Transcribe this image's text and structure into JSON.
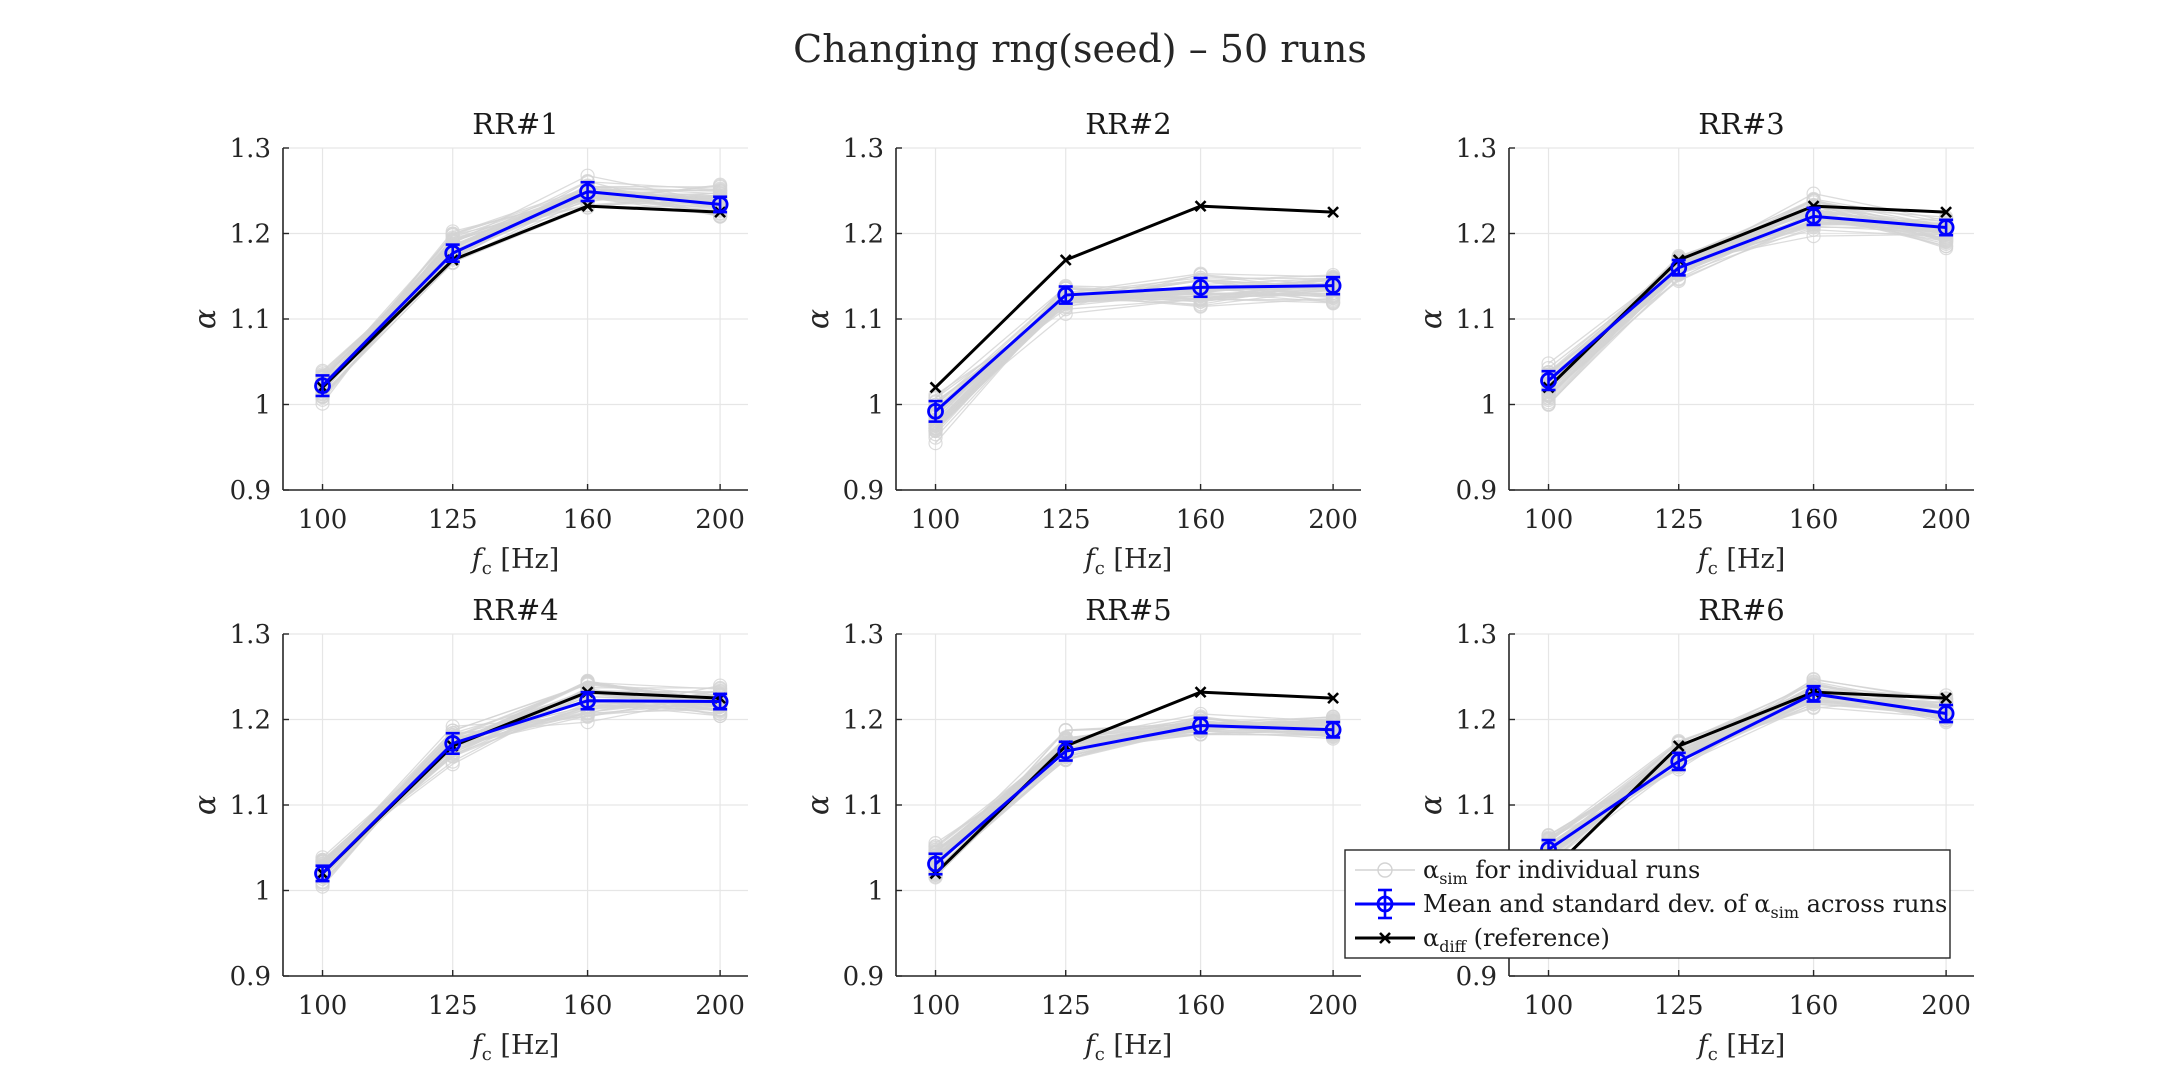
{
  "figure": {
    "title": "Changing rng(seed) – 50 runs"
  },
  "legend": {
    "items": [
      {
        "key": "individual",
        "label_main": "α",
        "label_sub": "sim",
        "label_rest": " for individual runs",
        "color": "#d3d3d3"
      },
      {
        "key": "mean",
        "label_main": "Mean and standard dev. of α",
        "label_sub": "sim",
        "label_rest": " across runs",
        "color": "#0000ff"
      },
      {
        "key": "reference",
        "label_main": "α",
        "label_sub": "diff",
        "label_rest": " (reference)",
        "color": "#000000"
      }
    ],
    "placement": "bottom-right (overlapping RR#6)"
  },
  "colors": {
    "individual": "#d3d3d3",
    "mean": "#0000ff",
    "reference": "#000000",
    "grid": "#e6e6e6",
    "axis": "#262626"
  },
  "chart_data": [
    {
      "type": "line",
      "title": "RR#1",
      "xlabel_main": "f",
      "xlabel_sub": "c",
      "xlabel_rest": " [Hz]",
      "ylabel": "α",
      "categories": [
        "100",
        "125",
        "160",
        "200"
      ],
      "ylim": [
        0.9,
        1.3
      ],
      "yticks": [
        "0.9",
        "1",
        "1.1",
        "1.2",
        "1.3"
      ],
      "grid": true,
      "individual_range": {
        "min": [
          0.99,
          1.155,
          1.225,
          1.212
        ],
        "max": [
          1.052,
          1.21,
          1.27,
          1.262
        ]
      },
      "series": [
        {
          "name": "Mean and standard dev. of α sim across runs",
          "values": [
            1.022,
            1.177,
            1.249,
            1.234
          ],
          "std": [
            0.012,
            0.01,
            0.011,
            0.009
          ]
        },
        {
          "name": "α diff (reference)",
          "values": [
            1.02,
            1.169,
            1.232,
            1.225
          ]
        }
      ]
    },
    {
      "type": "line",
      "title": "RR#2",
      "xlabel_main": "f",
      "xlabel_sub": "c",
      "xlabel_rest": " [Hz]",
      "ylabel": "α",
      "categories": [
        "100",
        "125",
        "160",
        "200"
      ],
      "ylim": [
        0.9,
        1.3
      ],
      "yticks": [
        "0.9",
        "1",
        "1.1",
        "1.2",
        "1.3"
      ],
      "grid": true,
      "individual_range": {
        "min": [
          0.946,
          1.105,
          1.103,
          1.115
        ],
        "max": [
          1.02,
          1.145,
          1.16,
          1.163
        ]
      },
      "series": [
        {
          "name": "Mean and standard dev. of α sim across runs",
          "values": [
            0.992,
            1.128,
            1.137,
            1.139
          ],
          "std": [
            0.012,
            0.01,
            0.011,
            0.01
          ]
        },
        {
          "name": "α diff (reference)",
          "values": [
            1.02,
            1.169,
            1.232,
            1.225
          ]
        }
      ]
    },
    {
      "type": "line",
      "title": "RR#3",
      "xlabel_main": "f",
      "xlabel_sub": "c",
      "xlabel_rest": " [Hz]",
      "ylabel": "α",
      "categories": [
        "100",
        "125",
        "160",
        "200"
      ],
      "ylim": [
        0.9,
        1.3
      ],
      "yticks": [
        "0.9",
        "1",
        "1.1",
        "1.2",
        "1.3"
      ],
      "grid": true,
      "individual_range": {
        "min": [
          0.99,
          1.135,
          1.193,
          1.178
        ],
        "max": [
          1.055,
          1.185,
          1.252,
          1.228
        ]
      },
      "series": [
        {
          "name": "Mean and standard dev. of α sim across runs",
          "values": [
            1.028,
            1.16,
            1.22,
            1.207
          ],
          "std": [
            0.011,
            0.009,
            0.01,
            0.009
          ]
        },
        {
          "name": "α diff (reference)",
          "values": [
            1.02,
            1.169,
            1.232,
            1.225
          ]
        }
      ]
    },
    {
      "type": "line",
      "title": "RR#4",
      "xlabel_main": "f",
      "xlabel_sub": "c",
      "xlabel_rest": " [Hz]",
      "ylabel": "α",
      "categories": [
        "100",
        "125",
        "160",
        "200"
      ],
      "ylim": [
        0.9,
        1.3
      ],
      "yticks": [
        "0.9",
        "1",
        "1.1",
        "1.2",
        "1.3"
      ],
      "grid": true,
      "individual_range": {
        "min": [
          1.0,
          1.143,
          1.19,
          1.195
        ],
        "max": [
          1.048,
          1.2,
          1.26,
          1.243
        ]
      },
      "series": [
        {
          "name": "Mean and standard dev. of α sim across runs",
          "values": [
            1.02,
            1.172,
            1.222,
            1.221
          ],
          "std": [
            0.009,
            0.012,
            0.01,
            0.009
          ]
        },
        {
          "name": "α diff (reference)",
          "values": [
            1.02,
            1.169,
            1.232,
            1.225
          ]
        }
      ]
    },
    {
      "type": "line",
      "title": "RR#5",
      "xlabel_main": "f",
      "xlabel_sub": "c",
      "xlabel_rest": " [Hz]",
      "ylabel": "α",
      "categories": [
        "100",
        "125",
        "160",
        "200"
      ],
      "ylim": [
        0.9,
        1.3
      ],
      "yticks": [
        "0.9",
        "1",
        "1.1",
        "1.2",
        "1.3"
      ],
      "grid": true,
      "individual_range": {
        "min": [
          1.003,
          1.14,
          1.172,
          1.17
        ],
        "max": [
          1.06,
          1.195,
          1.213,
          1.208
        ]
      },
      "series": [
        {
          "name": "Mean and standard dev. of α sim across runs",
          "values": [
            1.031,
            1.163,
            1.193,
            1.188
          ],
          "std": [
            0.012,
            0.011,
            0.009,
            0.009
          ]
        },
        {
          "name": "α diff (reference)",
          "values": [
            1.02,
            1.169,
            1.232,
            1.225
          ]
        }
      ]
    },
    {
      "type": "line",
      "title": "RR#6",
      "xlabel_main": "f",
      "xlabel_sub": "c",
      "xlabel_rest": " [Hz]",
      "ylabel": "α",
      "categories": [
        "100",
        "125",
        "160",
        "200"
      ],
      "ylim": [
        0.9,
        1.3
      ],
      "yticks": [
        "0.9",
        "1",
        "1.1",
        "1.2",
        "1.3"
      ],
      "grid": true,
      "individual_range": {
        "min": [
          1.02,
          1.128,
          1.21,
          1.188
        ],
        "max": [
          1.075,
          1.182,
          1.255,
          1.235
        ]
      },
      "series": [
        {
          "name": "Mean and standard dev. of α sim across runs",
          "values": [
            1.048,
            1.151,
            1.23,
            1.207
          ],
          "std": [
            0.011,
            0.01,
            0.009,
            0.01
          ]
        },
        {
          "name": "α diff (reference)",
          "values": [
            1.02,
            1.169,
            1.232,
            1.225
          ]
        }
      ]
    }
  ]
}
